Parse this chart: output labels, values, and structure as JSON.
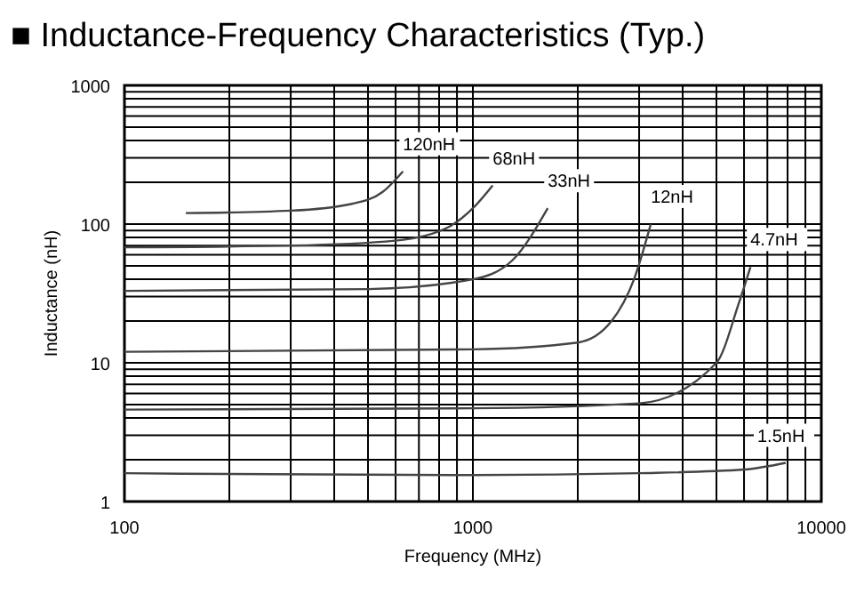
{
  "chart_data": {
    "type": "line",
    "title": "■ Inductance-Frequency Characteristics (Typ.)",
    "xlabel": "Frequency (MHz)",
    "ylabel": "Inductance (nH)",
    "log": "xy",
    "grid": true,
    "marker": "none",
    "line_style": "solid",
    "xlim": [
      100,
      10000
    ],
    "ylim": [
      1,
      1000
    ],
    "xticks": [
      100,
      {
        "value": 200,
        "label": null
      },
      {
        "value": 300,
        "label": null
      },
      {
        "value": 400,
        "label": null
      },
      {
        "value": 500,
        "label": null
      },
      {
        "value": 600,
        "label": null
      },
      {
        "value": 700,
        "label": null
      },
      {
        "value": 800,
        "label": null
      },
      {
        "value": 900,
        "label": null
      },
      1000,
      {
        "value": 2000,
        "label": null
      },
      {
        "value": 3000,
        "label": null
      },
      {
        "value": 4000,
        "label": null
      },
      {
        "value": 5000,
        "label": null
      },
      {
        "value": 6000,
        "label": null
      },
      {
        "value": 7000,
        "label": null
      },
      {
        "value": 8000,
        "label": null
      },
      {
        "value": 9000,
        "label": null
      },
      10000
    ],
    "yticks": [
      1,
      {
        "value": 2,
        "label": null
      },
      {
        "value": 3,
        "label": null
      },
      {
        "value": 4,
        "label": null
      },
      {
        "value": 5,
        "label": null
      },
      {
        "value": 6,
        "label": null
      },
      {
        "value": 7,
        "label": null
      },
      {
        "value": 8,
        "label": null
      },
      {
        "value": 9,
        "label": null
      },
      10,
      {
        "value": 20,
        "label": null
      },
      {
        "value": 30,
        "label": null
      },
      {
        "value": 40,
        "label": null
      },
      {
        "value": 50,
        "label": null
      },
      {
        "value": 60,
        "label": null
      },
      {
        "value": 70,
        "label": null
      },
      {
        "value": 80,
        "label": null
      },
      {
        "value": 90,
        "label": null
      },
      100,
      {
        "value": 200,
        "label": null
      },
      {
        "value": 300,
        "label": null
      },
      {
        "value": 400,
        "label": null
      },
      {
        "value": 500,
        "label": null
      },
      {
        "value": 600,
        "label": null
      },
      {
        "value": 700,
        "label": null
      },
      {
        "value": 800,
        "label": null
      },
      {
        "value": 900,
        "label": null
      },
      1000
    ],
    "series": [
      {
        "name": "120nH",
        "color": "#444444",
        "x": [
          150,
          300,
          450,
          550,
          630
        ],
        "values": [
          120,
          125,
          140,
          170,
          240
        ]
      },
      {
        "name": "68nH",
        "color": "#444444",
        "x": [
          100,
          300,
          600,
          850,
          1000,
          1140
        ],
        "values": [
          68,
          70,
          76,
          95,
          130,
          190
        ]
      },
      {
        "name": "33nH",
        "color": "#444444",
        "x": [
          100,
          500,
          1000,
          1300,
          1640
        ],
        "values": [
          33,
          34,
          40,
          55,
          130
        ]
      },
      {
        "name": "12nH",
        "color": "#444444",
        "x": [
          100,
          1000,
          2000,
          2500,
          2900,
          3240
        ],
        "values": [
          12,
          12.5,
          14,
          20,
          40,
          100
        ]
      },
      {
        "name": "4.7nH",
        "color": "#444444",
        "x": [
          100,
          1000,
          3000,
          5000,
          5800,
          6260
        ],
        "values": [
          4.6,
          4.7,
          5.1,
          10,
          27,
          49
        ]
      },
      {
        "name": "1.5nH",
        "color": "#444444",
        "x": [
          100,
          1000,
          3000,
          6000,
          7900
        ],
        "values": [
          1.6,
          1.55,
          1.6,
          1.7,
          1.9
        ]
      }
    ]
  }
}
